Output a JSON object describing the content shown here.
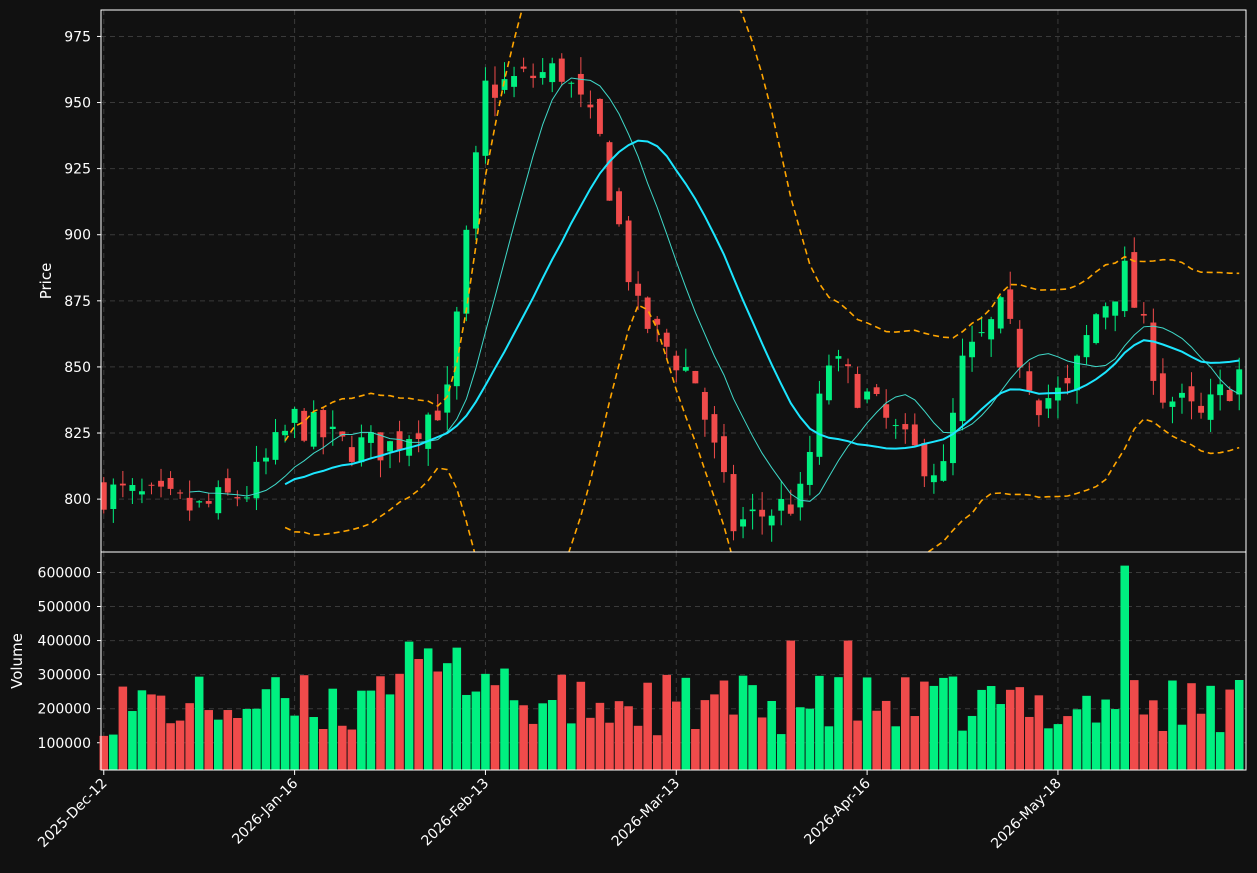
{
  "chart_data": [
    {
      "type": "candlestick",
      "panel": "price",
      "ylabel": "Price",
      "ylim": [
        780,
        985
      ],
      "yticks": [
        800,
        825,
        850,
        875,
        900,
        925,
        950,
        975
      ],
      "grid": true,
      "colors": {
        "up": "#00f080",
        "down": "#f04b4b",
        "ma_fast": "#3fd8c8",
        "ma_slow": "#1ce6ff",
        "bands": "#ffa500"
      },
      "overlays": [
        "moving average (fast, thin cyan)",
        "moving average (slow, thick cyan)",
        "bands (dashed orange)"
      ],
      "n_bars": 120
    },
    {
      "type": "bar",
      "panel": "volume",
      "ylabel": "Volume",
      "ylim": [
        20000,
        660000
      ],
      "yticks": [
        100000,
        200000,
        300000,
        400000,
        500000,
        600000
      ],
      "xticks": [
        {
          "index": 0,
          "label": "2025-Dec-12"
        },
        {
          "index": 20,
          "label": "2026-Jan-16"
        },
        {
          "index": 40,
          "label": "2026-Feb-13"
        },
        {
          "index": 60,
          "label": "2026-Mar-13"
        },
        {
          "index": 80,
          "label": "2026-Apr-16"
        },
        {
          "index": 100,
          "label": "2026-May-18"
        }
      ],
      "grid": true
    }
  ]
}
